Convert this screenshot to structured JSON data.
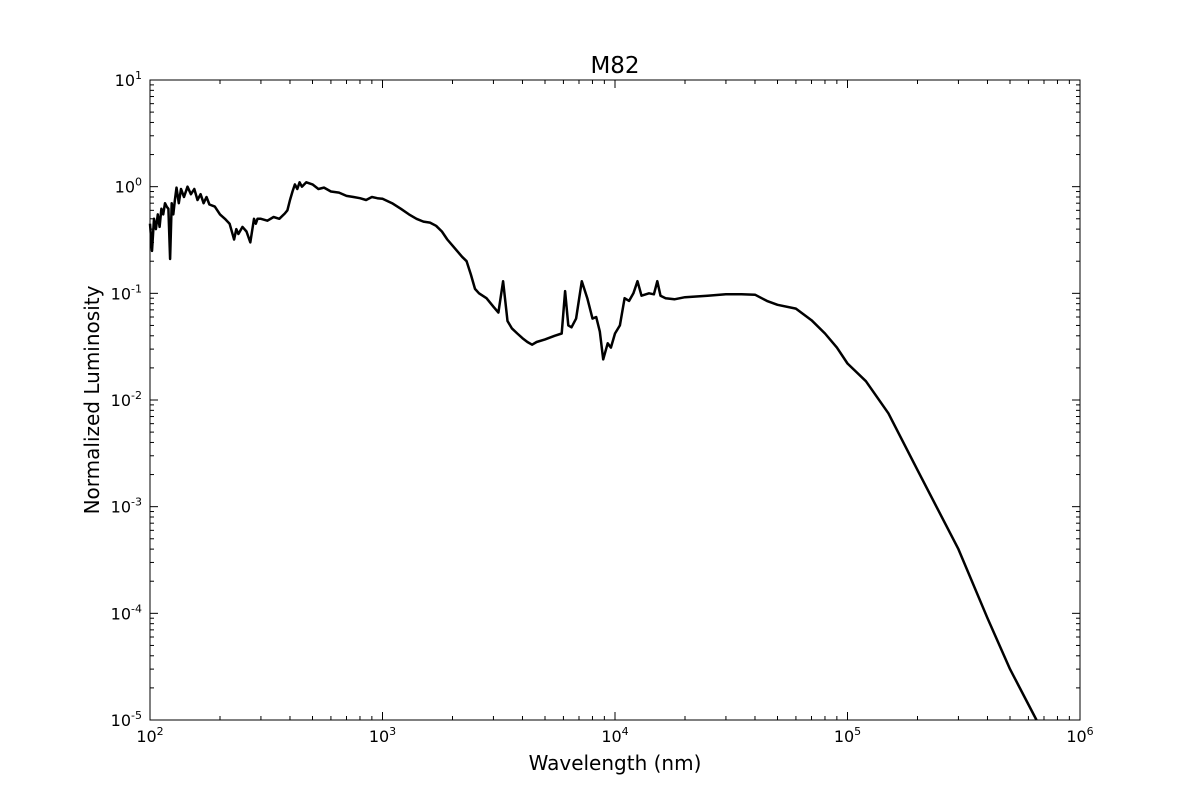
{
  "chart_data": {
    "type": "line",
    "title": "M82",
    "xlabel": "Wavelength (nm)",
    "ylabel": "Normalized Luminosity",
    "xscale": "log",
    "yscale": "log",
    "xlim": [
      100,
      1000000
    ],
    "ylim": [
      1e-05,
      10
    ],
    "x_ticks": [
      {
        "base": "10",
        "exp": "2"
      },
      {
        "base": "10",
        "exp": "3"
      },
      {
        "base": "10",
        "exp": "4"
      },
      {
        "base": "10",
        "exp": "5"
      },
      {
        "base": "10",
        "exp": "6"
      }
    ],
    "y_ticks": [
      {
        "base": "10",
        "exp": "1"
      },
      {
        "base": "10",
        "exp": "0"
      },
      {
        "base": "10",
        "exp": "-1"
      },
      {
        "base": "10",
        "exp": "-2"
      },
      {
        "base": "10",
        "exp": "-3"
      },
      {
        "base": "10",
        "exp": "-4"
      },
      {
        "base": "10",
        "exp": "-5"
      }
    ],
    "line_color": "#000000",
    "grid": false,
    "series": [
      {
        "x": [
          100,
          102,
          104,
          106,
          108,
          110,
          112,
          114,
          116,
          118,
          120,
          122,
          124,
          126,
          128,
          130,
          133,
          136,
          140,
          145,
          150,
          155,
          160,
          165,
          170,
          175,
          180,
          190,
          200,
          210,
          220,
          230,
          235,
          240,
          250,
          260,
          270,
          280,
          285,
          290,
          300,
          320,
          340,
          360,
          380,
          390,
          400,
          410,
          420,
          430,
          440,
          450,
          470,
          500,
          530,
          560,
          600,
          650,
          700,
          750,
          800,
          850,
          900,
          950,
          1000,
          1100,
          1200,
          1300,
          1400,
          1500,
          1600,
          1700,
          1800,
          1900,
          2000,
          2200,
          2300,
          2400,
          2500,
          2600,
          2800,
          3000,
          3150,
          3300,
          3450,
          3600,
          3800,
          4000,
          4200,
          4400,
          4600,
          5000,
          5500,
          5900,
          6100,
          6300,
          6500,
          6800,
          7200,
          7600,
          8000,
          8300,
          8600,
          8900,
          9300,
          9600,
          10000,
          10500,
          11000,
          11500,
          12000,
          12500,
          13000,
          14000,
          14700,
          15200,
          15700,
          16500,
          18000,
          20000,
          25000,
          30000,
          35000,
          40000,
          45000,
          50000,
          60000,
          70000,
          80000,
          90000,
          100000,
          120000,
          150000,
          200000,
          300000,
          400000,
          500000,
          650000
        ],
        "y": [
          0.45,
          0.25,
          0.5,
          0.4,
          0.55,
          0.42,
          0.62,
          0.55,
          0.7,
          0.65,
          0.62,
          0.21,
          0.7,
          0.55,
          0.75,
          0.98,
          0.7,
          0.95,
          0.8,
          1.0,
          0.85,
          0.95,
          0.75,
          0.85,
          0.7,
          0.8,
          0.68,
          0.65,
          0.55,
          0.5,
          0.45,
          0.32,
          0.4,
          0.36,
          0.42,
          0.38,
          0.3,
          0.5,
          0.45,
          0.5,
          0.5,
          0.48,
          0.52,
          0.5,
          0.56,
          0.6,
          0.75,
          0.9,
          1.05,
          0.95,
          1.1,
          1.0,
          1.1,
          1.05,
          0.95,
          0.98,
          0.9,
          0.88,
          0.82,
          0.8,
          0.78,
          0.75,
          0.8,
          0.78,
          0.77,
          0.7,
          0.62,
          0.55,
          0.5,
          0.47,
          0.46,
          0.43,
          0.38,
          0.32,
          0.28,
          0.22,
          0.2,
          0.15,
          0.11,
          0.1,
          0.09,
          0.075,
          0.066,
          0.13,
          0.055,
          0.047,
          0.042,
          0.038,
          0.035,
          0.033,
          0.035,
          0.037,
          0.04,
          0.042,
          0.105,
          0.05,
          0.048,
          0.058,
          0.13,
          0.09,
          0.058,
          0.06,
          0.044,
          0.024,
          0.034,
          0.031,
          0.042,
          0.05,
          0.09,
          0.085,
          0.1,
          0.13,
          0.095,
          0.1,
          0.098,
          0.13,
          0.095,
          0.09,
          0.088,
          0.092,
          0.095,
          0.098,
          0.098,
          0.097,
          0.085,
          0.078,
          0.072,
          0.056,
          0.042,
          0.031,
          0.022,
          0.015,
          0.0075,
          0.0022,
          0.0004,
          9e-05,
          3e-05,
          1e-05
        ]
      }
    ]
  }
}
